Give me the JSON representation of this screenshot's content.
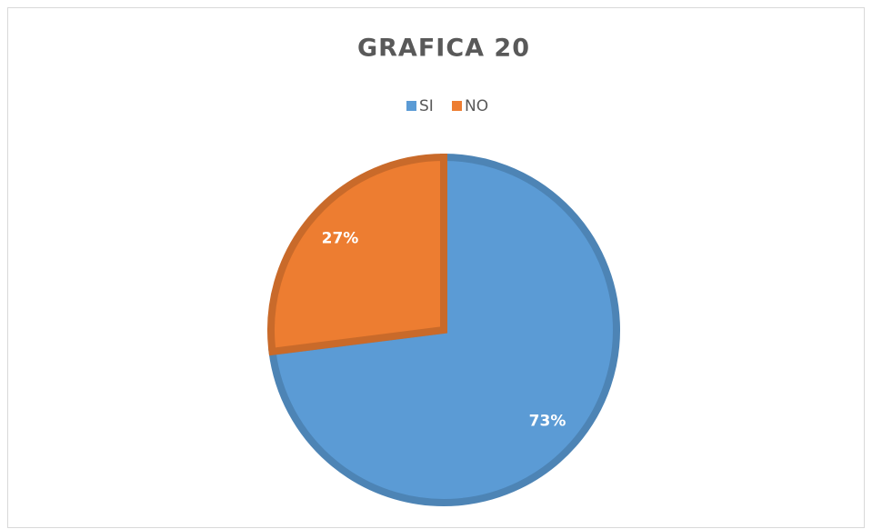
{
  "chart_data": {
    "type": "pie",
    "title": "GRAFICA 20",
    "categories": [
      "SI",
      "NO"
    ],
    "values": [
      73,
      27
    ],
    "value_labels": [
      "73%",
      "27%"
    ],
    "colors": [
      "#5b9bd5",
      "#ed7d31"
    ],
    "legend": "top"
  }
}
